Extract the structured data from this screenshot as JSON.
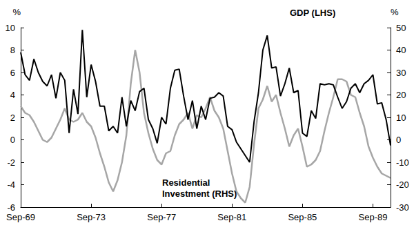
{
  "chart_data": {
    "type": "line",
    "categories": [
      "Sep-69",
      null,
      null,
      null,
      null,
      null,
      null,
      null,
      null,
      null,
      null,
      null,
      null,
      null,
      null,
      null,
      "Sep-73",
      null,
      null,
      null,
      null,
      null,
      null,
      null,
      null,
      null,
      null,
      null,
      null,
      null,
      null,
      null,
      "Sep-77",
      null,
      null,
      null,
      null,
      null,
      null,
      null,
      null,
      null,
      null,
      null,
      null,
      null,
      null,
      null,
      "Sep-81",
      null,
      null,
      null,
      null,
      null,
      null,
      null,
      null,
      null,
      null,
      null,
      null,
      null,
      null,
      null,
      "Sep-85",
      null,
      null,
      null,
      null,
      null,
      null,
      null,
      null,
      null,
      null,
      null,
      null,
      null,
      null,
      null,
      "Sep-89",
      null,
      null,
      null,
      null
    ],
    "series": [
      {
        "name": "GDP (LHS)",
        "color": "#000000",
        "axis": "y",
        "values": [
          7.8,
          5.8,
          5.3,
          7.2,
          6.0,
          5.2,
          4.8,
          5.8,
          3.7,
          6.0,
          5.3,
          0.6,
          4.5,
          2.3,
          9.8,
          3.8,
          6.7,
          5.2,
          3.0,
          3.0,
          0.8,
          1.2,
          0.6,
          3.8,
          1.2,
          3.5,
          2.6,
          4.3,
          4.6,
          1.8,
          1.0,
          -0.3,
          2.0,
          1.4,
          4.6,
          6.2,
          6.3,
          3.9,
          1.8,
          3.5,
          1.0,
          3.0,
          1.8,
          3.7,
          3.8,
          4.2,
          3.9,
          1.2,
          0.9,
          -0.2,
          -0.8,
          -1.4,
          -2.0,
          1.6,
          4.2,
          8.0,
          9.3,
          6.4,
          6.5,
          3.9,
          5.0,
          6.4,
          4.2,
          4.4,
          0.6,
          0.3,
          2.6,
          1.9,
          5.0,
          4.9,
          5.0,
          4.9,
          3.8,
          2.8,
          3.4,
          4.6,
          5.0,
          4.2,
          5.0,
          5.3,
          5.8,
          3.2,
          3.3,
          1.8,
          -0.5
        ]
      },
      {
        "name": "Residential Investment (RHS)",
        "color": "#a6a6a6",
        "axis": "y2",
        "values": [
          15,
          12,
          11,
          8,
          4,
          0,
          -1,
          1,
          5,
          9,
          14,
          9,
          8,
          9,
          12,
          8,
          6,
          1,
          -6,
          -12,
          -19,
          -23,
          -18,
          -10,
          2,
          25,
          40,
          30,
          12,
          3,
          -4,
          -9,
          -11,
          -6,
          -5,
          2,
          7,
          9,
          12,
          5,
          11,
          10,
          14,
          19,
          13,
          10,
          5,
          -5,
          -15,
          -23,
          -26,
          -28,
          -21,
          -2,
          14,
          18,
          24,
          17,
          20,
          12,
          5,
          -3,
          2,
          5,
          -3,
          -12,
          -11,
          -9,
          -5,
          4,
          12,
          19,
          27,
          27,
          26,
          20,
          19,
          12,
          6,
          -3,
          -8,
          -12,
          -15,
          -16,
          -17
        ]
      }
    ],
    "ylabel": "%",
    "y2label": "%",
    "ylim": [
      -6,
      10
    ],
    "yticks": [
      -6,
      -4,
      -2,
      0,
      2,
      4,
      6,
      8,
      10
    ],
    "y2lim": [
      -30,
      50
    ],
    "y2ticks": [
      -30,
      -20,
      -10,
      0,
      10,
      20,
      30,
      40,
      50
    ],
    "grid": false
  }
}
